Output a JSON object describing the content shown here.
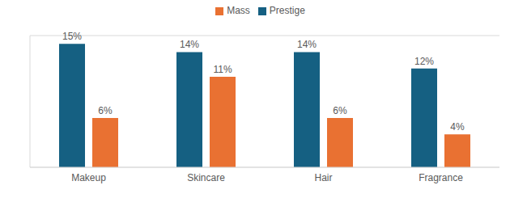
{
  "chart_data": {
    "type": "bar",
    "categories": [
      "Makeup",
      "Skincare",
      "Hair",
      "Fragrance"
    ],
    "series": [
      {
        "name": "Prestige",
        "color": "#156082",
        "values": [
          15,
          14,
          14,
          12
        ],
        "value_labels": [
          "15%",
          "14%",
          "14%",
          "12%"
        ]
      },
      {
        "name": "Mass",
        "color": "#E97132",
        "values": [
          6,
          11,
          6,
          4
        ],
        "value_labels": [
          "6%",
          "11%",
          "6%",
          "4%"
        ]
      }
    ],
    "ylim": [
      0,
      16
    ],
    "yticks": [
      0,
      2,
      4,
      6,
      8,
      10,
      12,
      14,
      16
    ],
    "grid": true,
    "legend": "top",
    "data_labels": true,
    "tick_labels": "x"
  }
}
